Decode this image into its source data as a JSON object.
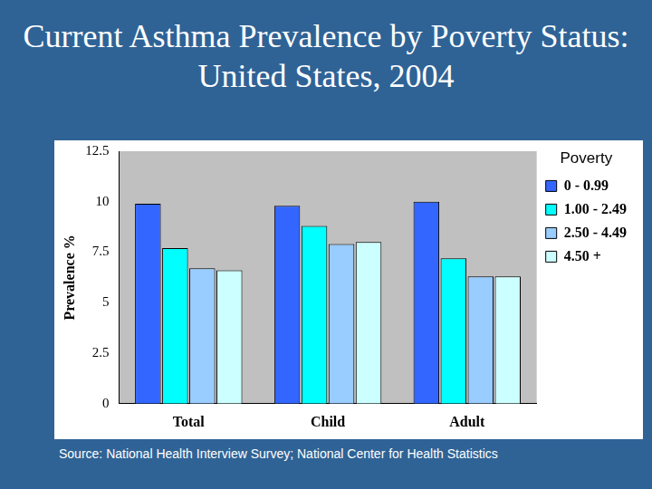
{
  "chart_data": {
    "type": "bar",
    "title": "Current Asthma Prevalence by Poverty Status: United States, 2004",
    "y_label": "Prevalence %",
    "legend_title": "Poverty",
    "source": "Source:  National Health Interview Survey; National Center for Health Statistics",
    "categories": [
      "Total",
      "Child",
      "Adult"
    ],
    "series": [
      {
        "name": "0 - 0.99",
        "color": "#3366ff",
        "values": [
          9.9,
          9.8,
          10.0
        ]
      },
      {
        "name": "1.00 - 2.49",
        "color": "#00ffff",
        "values": [
          7.7,
          8.8,
          7.2
        ]
      },
      {
        "name": "2.50 - 4.49",
        "color": "#99ccff",
        "values": [
          6.7,
          7.9,
          6.3
        ]
      },
      {
        "name": "4.50 +",
        "color": "#ccffff",
        "values": [
          6.6,
          8.0,
          6.3
        ]
      }
    ],
    "ylim": [
      0,
      12.5
    ],
    "yticks": [
      0,
      2.5,
      5,
      7.5,
      10,
      12.5
    ],
    "grid": false,
    "legend": "right"
  }
}
